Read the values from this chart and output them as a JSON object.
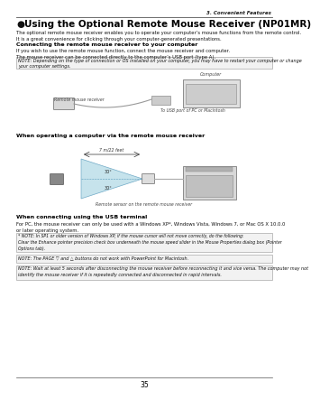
{
  "page_number": "35",
  "background_color": "#ffffff",
  "header_right": "3. Convenient Features",
  "section_icon": "●",
  "section_title": " Using the Optional Remote Mouse Receiver (NP01MR)",
  "intro_text": "The optional remote mouse receiver enables you to operate your computer’s mouse functions from the remote control.\nIt is a great convenience for clicking through your computer-generated presentations.",
  "sub1_title": "Connecting the remote mouse receiver to your computer",
  "sub1_text": "If you wish to use the remote mouse function, connect the mouse receiver and computer.\nThe mouse receiver can be connected directly to the computer’s USB port (type A).",
  "note1": "NOTE: Depending on the type of connection or OS installed on your computer, you may have to restart your computer or change\nyour computer settings.",
  "diagram1_label_left": "Remote mouse receiver",
  "diagram1_label_top": "Computer",
  "diagram1_label_right": "To USB port of PC or Macintosh",
  "sub2_title": "When operating a computer via the remote mouse receiver",
  "diagram2_label_dist": "7 m/22 feet",
  "diagram2_angle1": "30°",
  "diagram2_angle2": "30°",
  "diagram2_label_bottom": "Remote sensor on the remote mouse receiver",
  "sub3_title": "When connecting using the USB terminal",
  "sub3_text": "For PC, the mouse receiver can only be used with a Windows XP*, Windows Vista, Windows 7, or Mac OS X 10.0.0\nor later operating system.",
  "note2": "* NOTE: In SP1 or older version of Windows XP, if the mouse cursor will not move correctly, do the following:\nClear the Enhance pointer precision check box underneath the mouse speed slider in the Mouse Properties dialog box (Pointer\nOptions tab).",
  "note3": "NOTE: The PAGE ▽ and △ buttons do not work with PowerPoint for Macintosh.",
  "note4": "NOTE: Wait at least 5 seconds after disconnecting the mouse receiver before reconnecting it and vice versa. The computer may not\nidentify the mouse receiver if it is repeatedly connected and disconnected in rapid intervals.",
  "line_color": "#555555",
  "title_color": "#000000",
  "text_color": "#111111",
  "note_bg": "#f2f2f2",
  "note_border": "#aaaaaa",
  "cone_fill": "#b8dce8",
  "cone_edge": "#5599bb"
}
